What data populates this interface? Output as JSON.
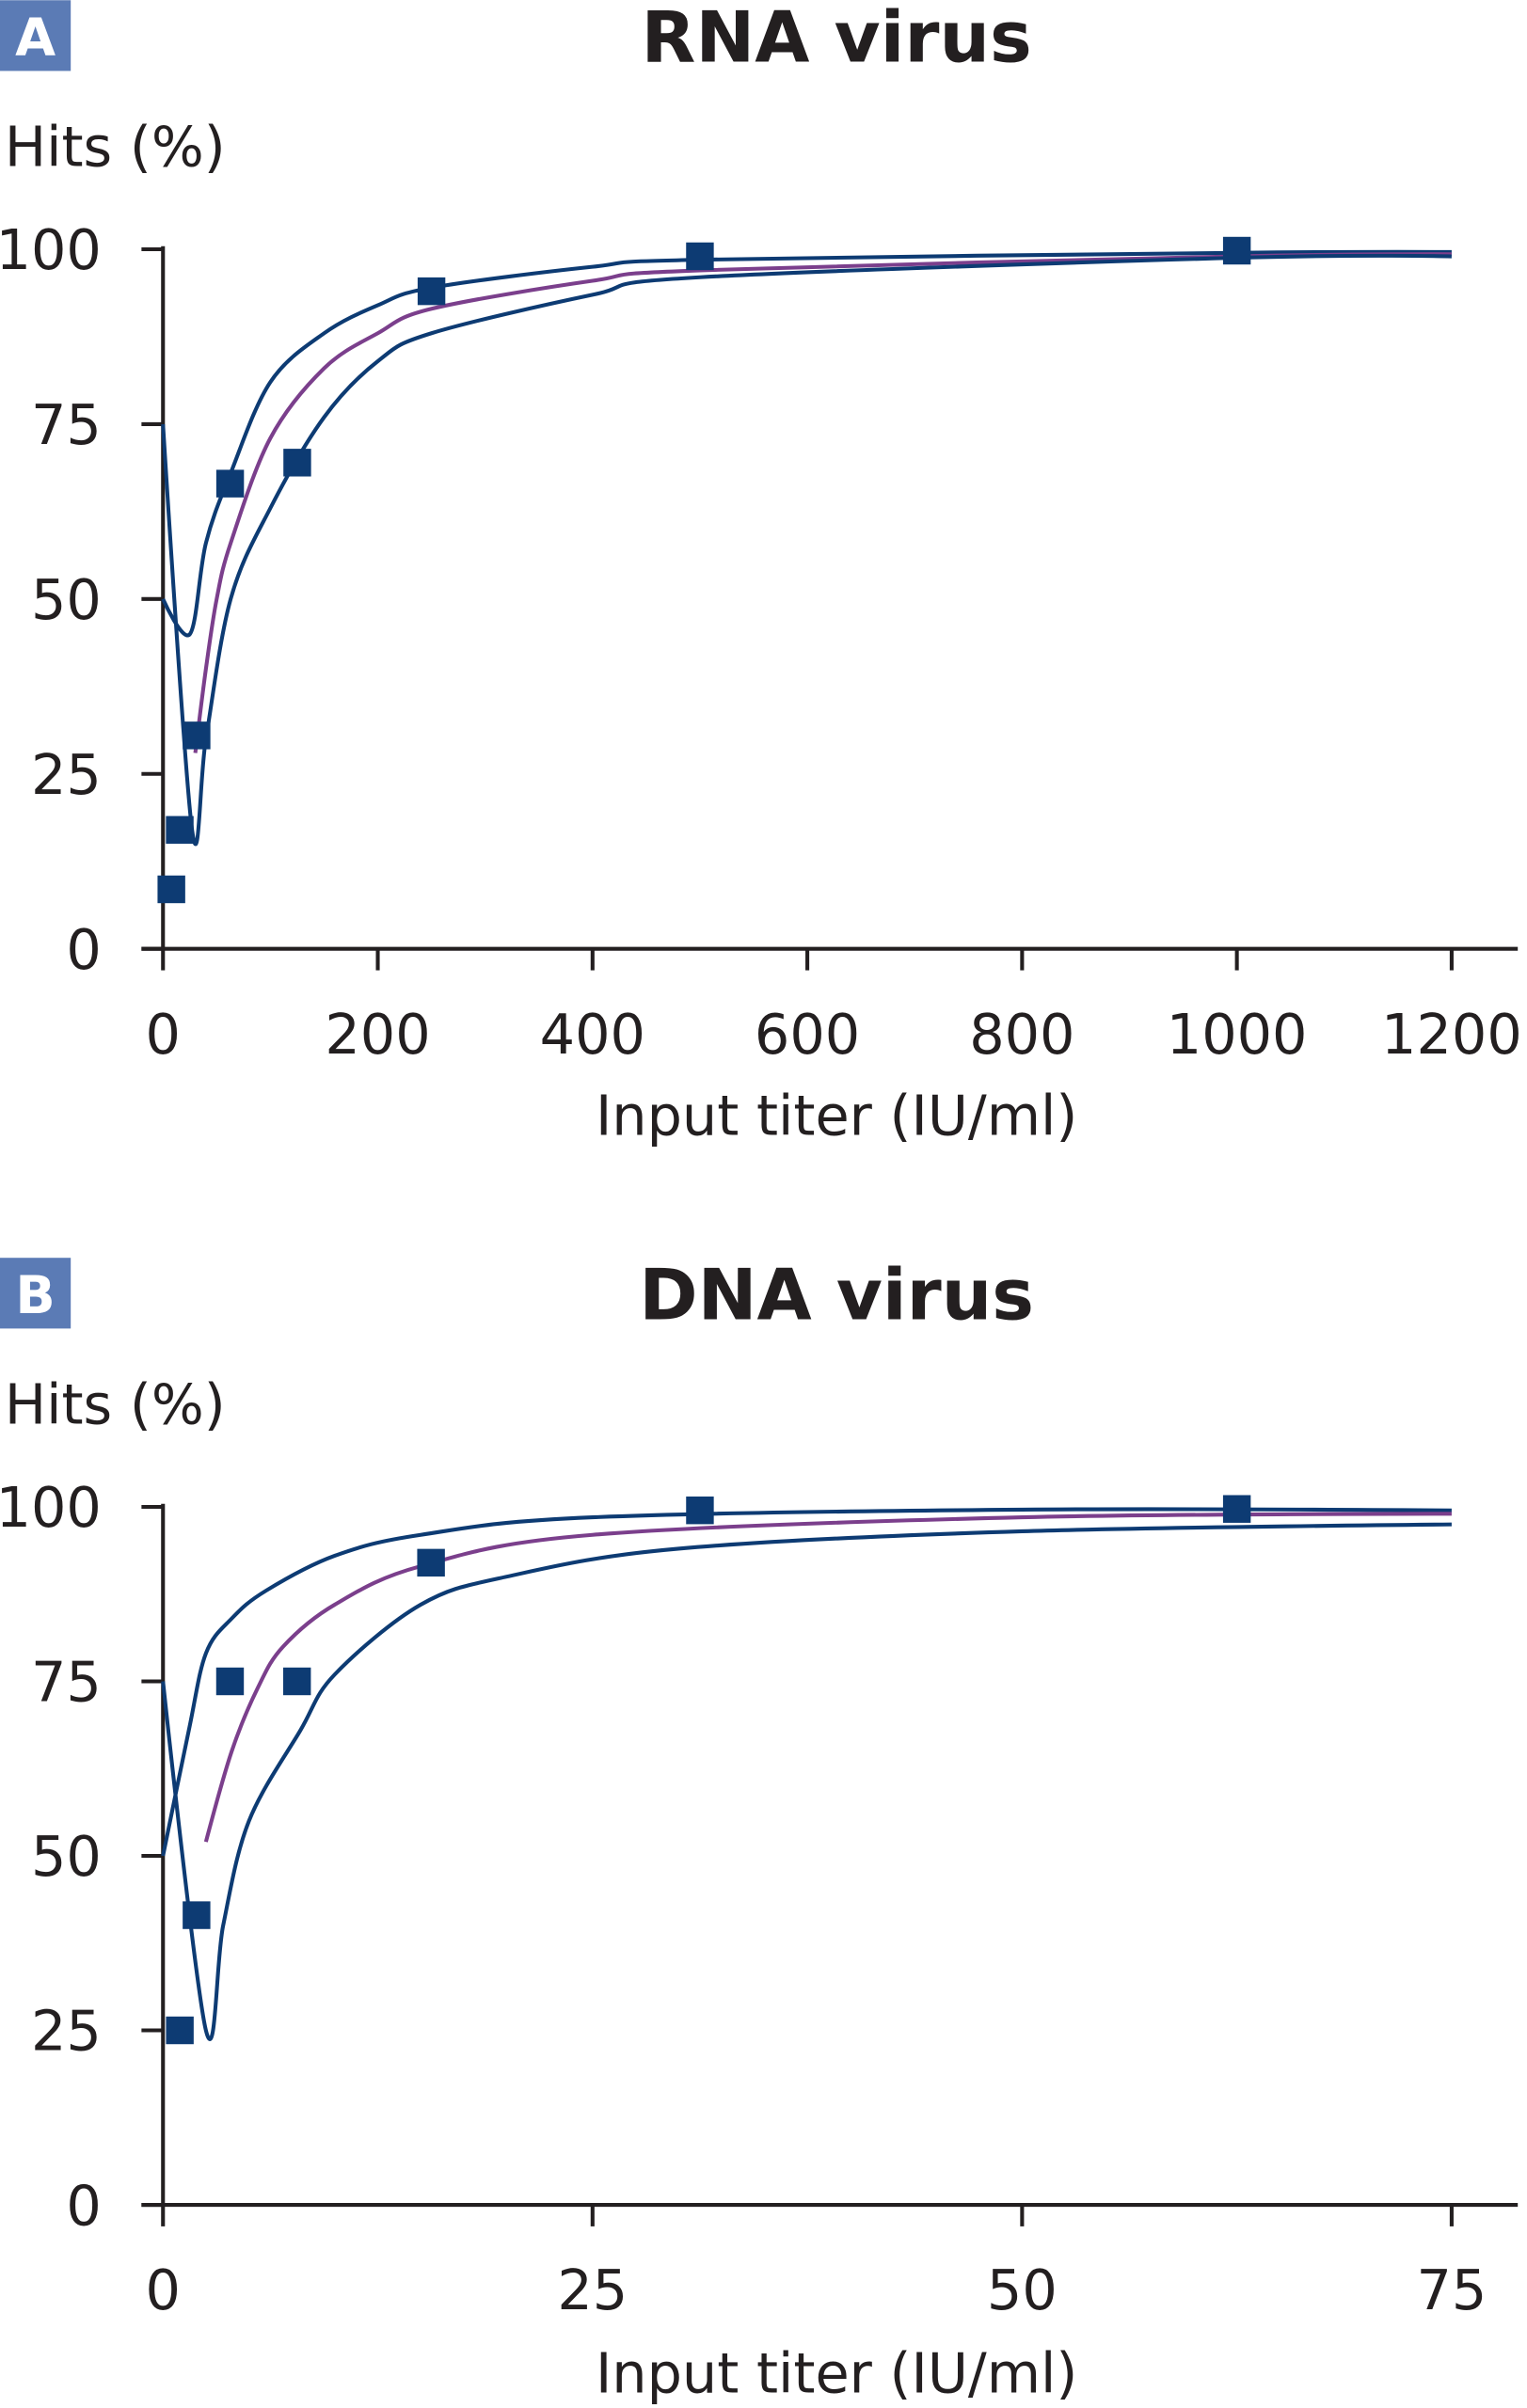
{
  "colors": {
    "ci_line": "#0d3b73",
    "fit_line": "#7b3f8c",
    "marker": "#0d3b73",
    "panel_label_bg": "#5b7bb5",
    "axis": "#231f20"
  },
  "chart_data": [
    {
      "type": "scatter",
      "panel_label": "A",
      "title": "RNA virus",
      "xlabel": "Input titer (IU/ml)",
      "ylabel": "Hits (%)",
      "xlim": [
        0,
        1200
      ],
      "ylim": [
        0,
        100
      ],
      "xticks": [
        0,
        200,
        400,
        600,
        800,
        1000,
        1200
      ],
      "yticks": [
        0,
        25,
        50,
        75,
        100
      ],
      "grid": false,
      "markers": {
        "x": [
          7.8,
          15.6,
          31.25,
          62.5,
          125,
          250,
          500,
          1000
        ],
        "y": [
          8.5,
          17,
          30.5,
          66.5,
          69.5,
          94,
          99,
          99.8
        ]
      },
      "curves": [
        {
          "role": "upper",
          "x": [
            0,
            25,
            40,
            63,
            100,
            150,
            200,
            250,
            400,
            500,
            1000,
            1200
          ],
          "y": [
            50,
            45,
            58,
            68,
            81,
            88,
            92,
            94.5,
            97.5,
            98.5,
            99.5,
            99.6
          ]
        },
        {
          "role": "fit",
          "x": [
            30,
            40,
            50,
            63,
            100,
            150,
            200,
            250,
            400,
            500,
            1000,
            1200
          ],
          "y": [
            28,
            40,
            50,
            58,
            73,
            83,
            88,
            91.5,
            95.5,
            97,
            99,
            99.3
          ]
        },
        {
          "role": "lower",
          "x": [
            0,
            27,
            40,
            63,
            100,
            150,
            200,
            250,
            400,
            500,
            1000,
            1200
          ],
          "y": [
            75,
            17,
            30,
            50,
            63,
            76,
            84,
            88,
            93.5,
            96,
            98.8,
            99
          ]
        }
      ]
    },
    {
      "type": "scatter",
      "panel_label": "B",
      "title": "DNA virus",
      "xlabel": "Input titer (IU/ml)",
      "ylabel": "Hits (%)",
      "xlim": [
        0,
        75
      ],
      "ylim": [
        0,
        100
      ],
      "xticks": [
        0,
        25,
        50,
        75
      ],
      "yticks": [
        0,
        25,
        50,
        75,
        100
      ],
      "grid": false,
      "markers": {
        "x": [
          0.98,
          1.95,
          3.9,
          7.8,
          15.6,
          31.25,
          62.5
        ],
        "y": [
          25,
          41.5,
          75,
          75,
          92,
          99.5,
          99.7
        ]
      },
      "curves": [
        {
          "role": "upper",
          "x": [
            0,
            1.5,
            2.5,
            4,
            6,
            10,
            15,
            25,
            50,
            75
          ],
          "y": [
            50,
            68,
            79,
            84,
            88,
            93,
            96,
            98.5,
            99.6,
            99.5
          ]
        },
        {
          "role": "fit",
          "x": [
            2.5,
            4,
            5.5,
            7,
            10,
            15,
            25,
            50,
            75
          ],
          "y": [
            52,
            65,
            74,
            80,
            86,
            91.5,
            96,
            98.5,
            99
          ]
        },
        {
          "role": "lower",
          "x": [
            0,
            2.5,
            3.5,
            5,
            8,
            10,
            15,
            20,
            30,
            50,
            75
          ],
          "y": [
            75,
            25,
            40,
            55,
            68,
            76,
            86,
            90,
            94,
            96.5,
            97.5
          ]
        }
      ]
    }
  ]
}
